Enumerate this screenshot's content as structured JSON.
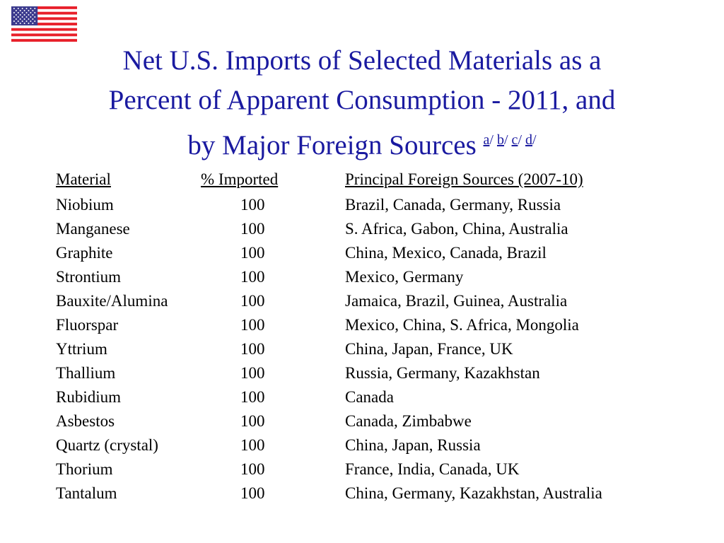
{
  "slide": {
    "title_line1": "Net U.S. Imports of Selected Materials as a",
    "title_line2": "Percent of Apparent Consumption - 2011, and",
    "title_line3": "by Major Foreign Sources",
    "footnote_a": "a",
    "footnote_b": "b",
    "footnote_c": "c",
    "footnote_d": "d",
    "separator": "/",
    "flag_icon": "us-flag-icon",
    "title_color": "#1a1aa0"
  },
  "table": {
    "headers": {
      "material": "Material",
      "imported": "% Imported",
      "sources": "Principal Foreign Sources (2007-10)"
    },
    "rows": [
      {
        "material": "Niobium",
        "imported": "100",
        "sources": "Brazil, Canada, Germany, Russia"
      },
      {
        "material": "Manganese",
        "imported": "100",
        "sources": "S. Africa, Gabon, China, Australia"
      },
      {
        "material": "Graphite",
        "imported": "100",
        "sources": "China, Mexico, Canada, Brazil"
      },
      {
        "material": "Strontium",
        "imported": "100",
        "sources": "Mexico, Germany"
      },
      {
        "material": "Bauxite/Alumina",
        "imported": "100",
        "sources": "Jamaica, Brazil, Guinea, Australia"
      },
      {
        "material": "Fluorspar",
        "imported": "100",
        "sources": "Mexico, China, S. Africa, Mongolia"
      },
      {
        "material": "Yttrium",
        "imported": "100",
        "sources": "China, Japan, France, UK"
      },
      {
        "material": "Thallium",
        "imported": "100",
        "sources": "Russia, Germany, Kazakhstan"
      },
      {
        "material": "Rubidium",
        "imported": "100",
        "sources": "Canada"
      },
      {
        "material": "Asbestos",
        "imported": "100",
        "sources": "Canada, Zimbabwe"
      },
      {
        "material": "Quartz (crystal)",
        "imported": "100",
        "sources": "China, Japan, Russia"
      },
      {
        "material": "Thorium",
        "imported": "100",
        "sources": "France, India, Canada, UK"
      },
      {
        "material": "Tantalum",
        "imported": "100",
        "sources": "China, Germany, Kazakhstan, Australia"
      }
    ]
  }
}
